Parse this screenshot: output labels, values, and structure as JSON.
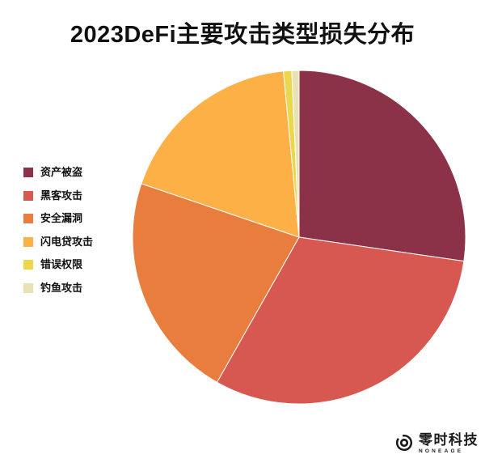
{
  "page": {
    "background": "#ffffff"
  },
  "chart_data": {
    "type": "pie",
    "title": "2023DeFi主要攻击类型损失分布",
    "labels": [
      "资产被盗",
      "黑客攻击",
      "安全漏洞",
      "闪电贷攻击",
      "错误权限",
      "钓鱼攻击"
    ],
    "values": [
      27.3,
      30.9,
      22.0,
      18.3,
      0.8,
      0.7
    ],
    "values_note": "percent share, estimated from slice angles (no numeric labels shown)",
    "colors": [
      "#8B3249",
      "#D65850",
      "#E87D3E",
      "#FCB045",
      "#EAD74D",
      "#E9E1B6"
    ],
    "legend_position": "left",
    "start_angle": "12 o'clock, clockwise",
    "slice_border_color": "#ffffff",
    "text_color": "#111111"
  },
  "logo": {
    "name": "零时科技",
    "subtitle": "NONEAGE",
    "color": "#1a1a1a"
  }
}
